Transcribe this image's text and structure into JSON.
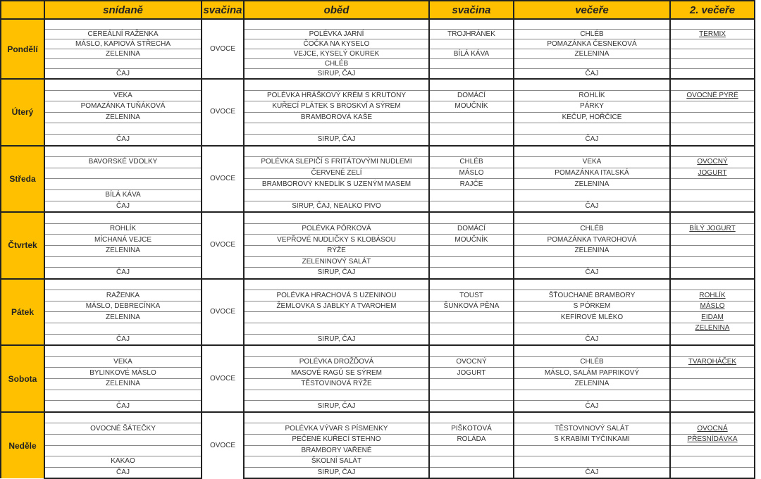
{
  "headers": [
    "",
    "snídaně",
    "svačina",
    "oběd",
    "svačina",
    "večeře",
    "2. večeře"
  ],
  "accent_color": "#FFC000",
  "days": [
    {
      "name": "Pondělí",
      "snack": "OVOCE",
      "rows": [
        [
          "",
          "",
          "",
          "",
          ""
        ],
        [
          "CEREÁLNÍ RAŽENKA",
          "POLÉVKA JARNÍ",
          "TROJHRÁNEK",
          "CHLÉB",
          "TERMIX"
        ],
        [
          "MÁSLO, KAPIOVÁ STŘECHA",
          "ČOČKA NA KYSELO",
          "",
          "POMAZÁNKA ČESNEKOVÁ",
          ""
        ],
        [
          "ZELENINA",
          "VEJCE, KYSELÝ OKUREK",
          "BÍLÁ KÁVA",
          "ZELENINA",
          ""
        ],
        [
          "",
          "CHLÉB",
          "",
          "",
          ""
        ],
        [
          "ČAJ",
          "SIRUP, ČAJ",
          "",
          "ČAJ",
          ""
        ]
      ]
    },
    {
      "name": "Úterý",
      "snack": "OVOCE",
      "rows": [
        [
          "",
          "",
          "",
          "",
          ""
        ],
        [
          "VEKA",
          "POLÉVKA HRÁŠKOVÝ KRÉM S KRUTONY",
          "DOMÁCÍ",
          "ROHLÍK",
          "OVOCNÉ PYRÉ"
        ],
        [
          "POMAZÁNKA TUŇÁKOVÁ",
          "KUŘECÍ PLÁTEK S BROSKVÍ A SÝREM",
          "MOUČNÍK",
          "PÁRKY",
          ""
        ],
        [
          "ZELENINA",
          "BRAMBOROVÁ KAŠE",
          "",
          "KEČUP, HOŘČICE",
          ""
        ],
        [
          "",
          "",
          "",
          "",
          ""
        ],
        [
          "ČAJ",
          "SIRUP, ČAJ",
          "",
          "ČAJ",
          ""
        ]
      ]
    },
    {
      "name": "Středa",
      "snack": "OVOCE",
      "rows": [
        [
          "",
          "",
          "",
          "",
          ""
        ],
        [
          "BAVORSKÉ VDOLKY",
          "POLÉVKA SLEPIČÍ S FRITÁTOVÝMI NUDLEMI",
          "CHLÉB",
          "VEKA",
          "OVOCNÝ"
        ],
        [
          "",
          "ČERVENÉ ZELÍ",
          "MÁSLO",
          "POMAZÁNKA ITALSKÁ",
          "JOGURT"
        ],
        [
          "",
          "BRAMBOROVÝ KNEDLÍK S UZENÝM MASEM",
          "RAJČE",
          "ZELENINA",
          ""
        ],
        [
          "BÍLÁ KÁVA",
          "",
          "",
          "",
          ""
        ],
        [
          "ČAJ",
          "SIRUP, ČAJ, NEALKO PIVO",
          "",
          "ČAJ",
          ""
        ]
      ]
    },
    {
      "name": "Čtvrtek",
      "snack": "OVOCE",
      "rows": [
        [
          "",
          "",
          "",
          "",
          ""
        ],
        [
          "ROHLÍK",
          "POLÉVKA PÓRKOVÁ",
          "DOMÁCÍ",
          "CHLÉB",
          "BÍLÝ JOGURT"
        ],
        [
          "MÍCHANÁ VEJCE",
          "VEPŘOVÉ NUDLIČKY S KLOBÁSOU",
          "MOUČNÍK",
          "POMAZÁNKA TVAROHOVÁ",
          ""
        ],
        [
          "ZELENINA",
          "RÝŽE",
          "",
          "ZELENINA",
          ""
        ],
        [
          "",
          "ZELENINOVÝ SALÁT",
          "",
          "",
          ""
        ],
        [
          "ČAJ",
          "SIRUP, ČAJ",
          "",
          "ČAJ",
          ""
        ]
      ]
    },
    {
      "name": "Pátek",
      "snack": "OVOCE",
      "rows": [
        [
          "",
          "",
          "",
          "",
          ""
        ],
        [
          "RAŽENKA",
          "POLÉVKA HRACHOVÁ S UZENINOU",
          "TOUST",
          "ŠŤOUCHANÉ BRAMBORY",
          "ROHLÍK"
        ],
        [
          "MÁSLO, DEBRECÍNKA",
          "ŽEMLOVKA S JABLKY A TVAROHEM",
          "ŠUNKOVÁ PĚNA",
          "S PÓRKEM",
          "MÁSLO"
        ],
        [
          "ZELENINA",
          "",
          "",
          "KEFÍROVÉ MLÉKO",
          "EIDAM"
        ],
        [
          "",
          "",
          "",
          "",
          "ZELENINA"
        ],
        [
          "ČAJ",
          "SIRUP, ČAJ",
          "",
          "ČAJ",
          ""
        ]
      ]
    },
    {
      "name": "Sobota",
      "snack": "OVOCE",
      "rows": [
        [
          "",
          "",
          "",
          "",
          ""
        ],
        [
          "VEKA",
          "POLÉVKA DROŽĎOVÁ",
          "OVOCNÝ",
          "CHLÉB",
          "TVAROHÁČEK"
        ],
        [
          "BYLINKOVÉ MÁSLO",
          "MASOVÉ RAGÚ SE SÝREM",
          "JOGURT",
          "MÁSLO, SALÁM PAPRIKOVÝ",
          ""
        ],
        [
          "ZELENINA",
          "TĚSTOVINOVÁ RÝŽE",
          "",
          "ZELENINA",
          ""
        ],
        [
          "",
          "",
          "",
          "",
          ""
        ],
        [
          "ČAJ",
          "SIRUP, ČAJ",
          "",
          "ČAJ",
          ""
        ]
      ]
    },
    {
      "name": "Neděle",
      "snack": "OVOCE",
      "rows": [
        [
          "",
          "",
          "",
          "",
          ""
        ],
        [
          "OVOCNÉ ŠÁTEČKY",
          "POLÉVKA VÝVAR S PÍSMENKY",
          "PIŠKOTOVÁ",
          "TĚSTOVINOVÝ SALÁT",
          "OVOCNÁ"
        ],
        [
          "",
          "PEČENÉ KUŘECÍ STEHNO",
          "ROLÁDA",
          "S KRABÍMI TYČINKAMI",
          "PŘESNÍDÁVKA"
        ],
        [
          "",
          "BRAMBORY VAŘENÉ",
          "",
          "",
          ""
        ],
        [
          "KAKAO",
          "ŠKOLNÍ SALÁT",
          "",
          "",
          ""
        ],
        [
          "ČAJ",
          "SIRUP, ČAJ",
          "",
          "ČAJ",
          ""
        ]
      ]
    }
  ]
}
